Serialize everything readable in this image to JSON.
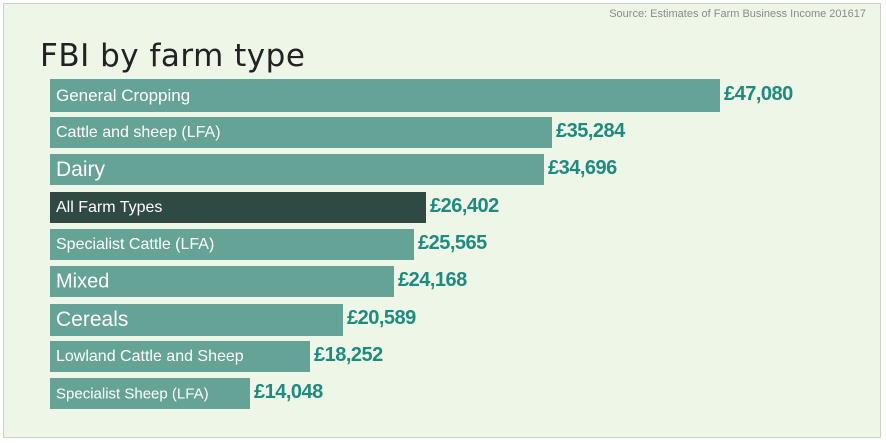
{
  "source": "Source: Estimates of Farm Business Income 201617",
  "chart_data": {
    "type": "bar",
    "orientation": "horizontal",
    "title": "FBI by farm type",
    "categories": [
      "General Cropping",
      "Cattle and sheep (LFA)",
      "Dairy",
      "All Farm Types",
      "Specialist Cattle (LFA)",
      "Mixed",
      "Cereals",
      "Lowland Cattle and Sheep",
      "Specialist Sheep (LFA)"
    ],
    "values": [
      47080,
      35284,
      34696,
      26402,
      25565,
      24168,
      20589,
      18252,
      14048
    ],
    "value_labels": [
      "£47,080",
      "£35,284",
      "£34,696",
      "£26,402",
      "£25,565",
      "£24,168",
      "£20,589",
      "£18,252",
      "£14,048"
    ],
    "highlight_category": "All Farm Types",
    "colors": {
      "bar": "#66a397",
      "highlight": "#2f4a43",
      "value_text": "#1f8a80",
      "background": "#eef6e7"
    },
    "grid": false,
    "legend": "none"
  }
}
